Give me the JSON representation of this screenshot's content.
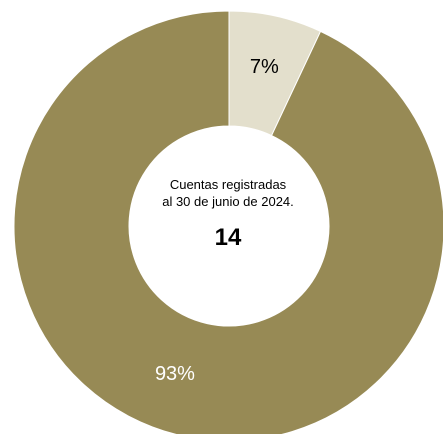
{
  "chart_data": {
    "type": "pie",
    "donut": true,
    "slices": [
      {
        "label": "7%",
        "value": 7,
        "color": "#e3dfcc",
        "label_color": "#000000"
      },
      {
        "label": "93%",
        "value": 93,
        "color": "#978a55",
        "label_color": "#ffffff"
      }
    ],
    "center": {
      "line1": "Cuentas registradas",
      "line2": "al 30 de junio de 2024.",
      "total": "14"
    },
    "start_angle_deg": 0,
    "direction": "clockwise",
    "legend": "none"
  }
}
